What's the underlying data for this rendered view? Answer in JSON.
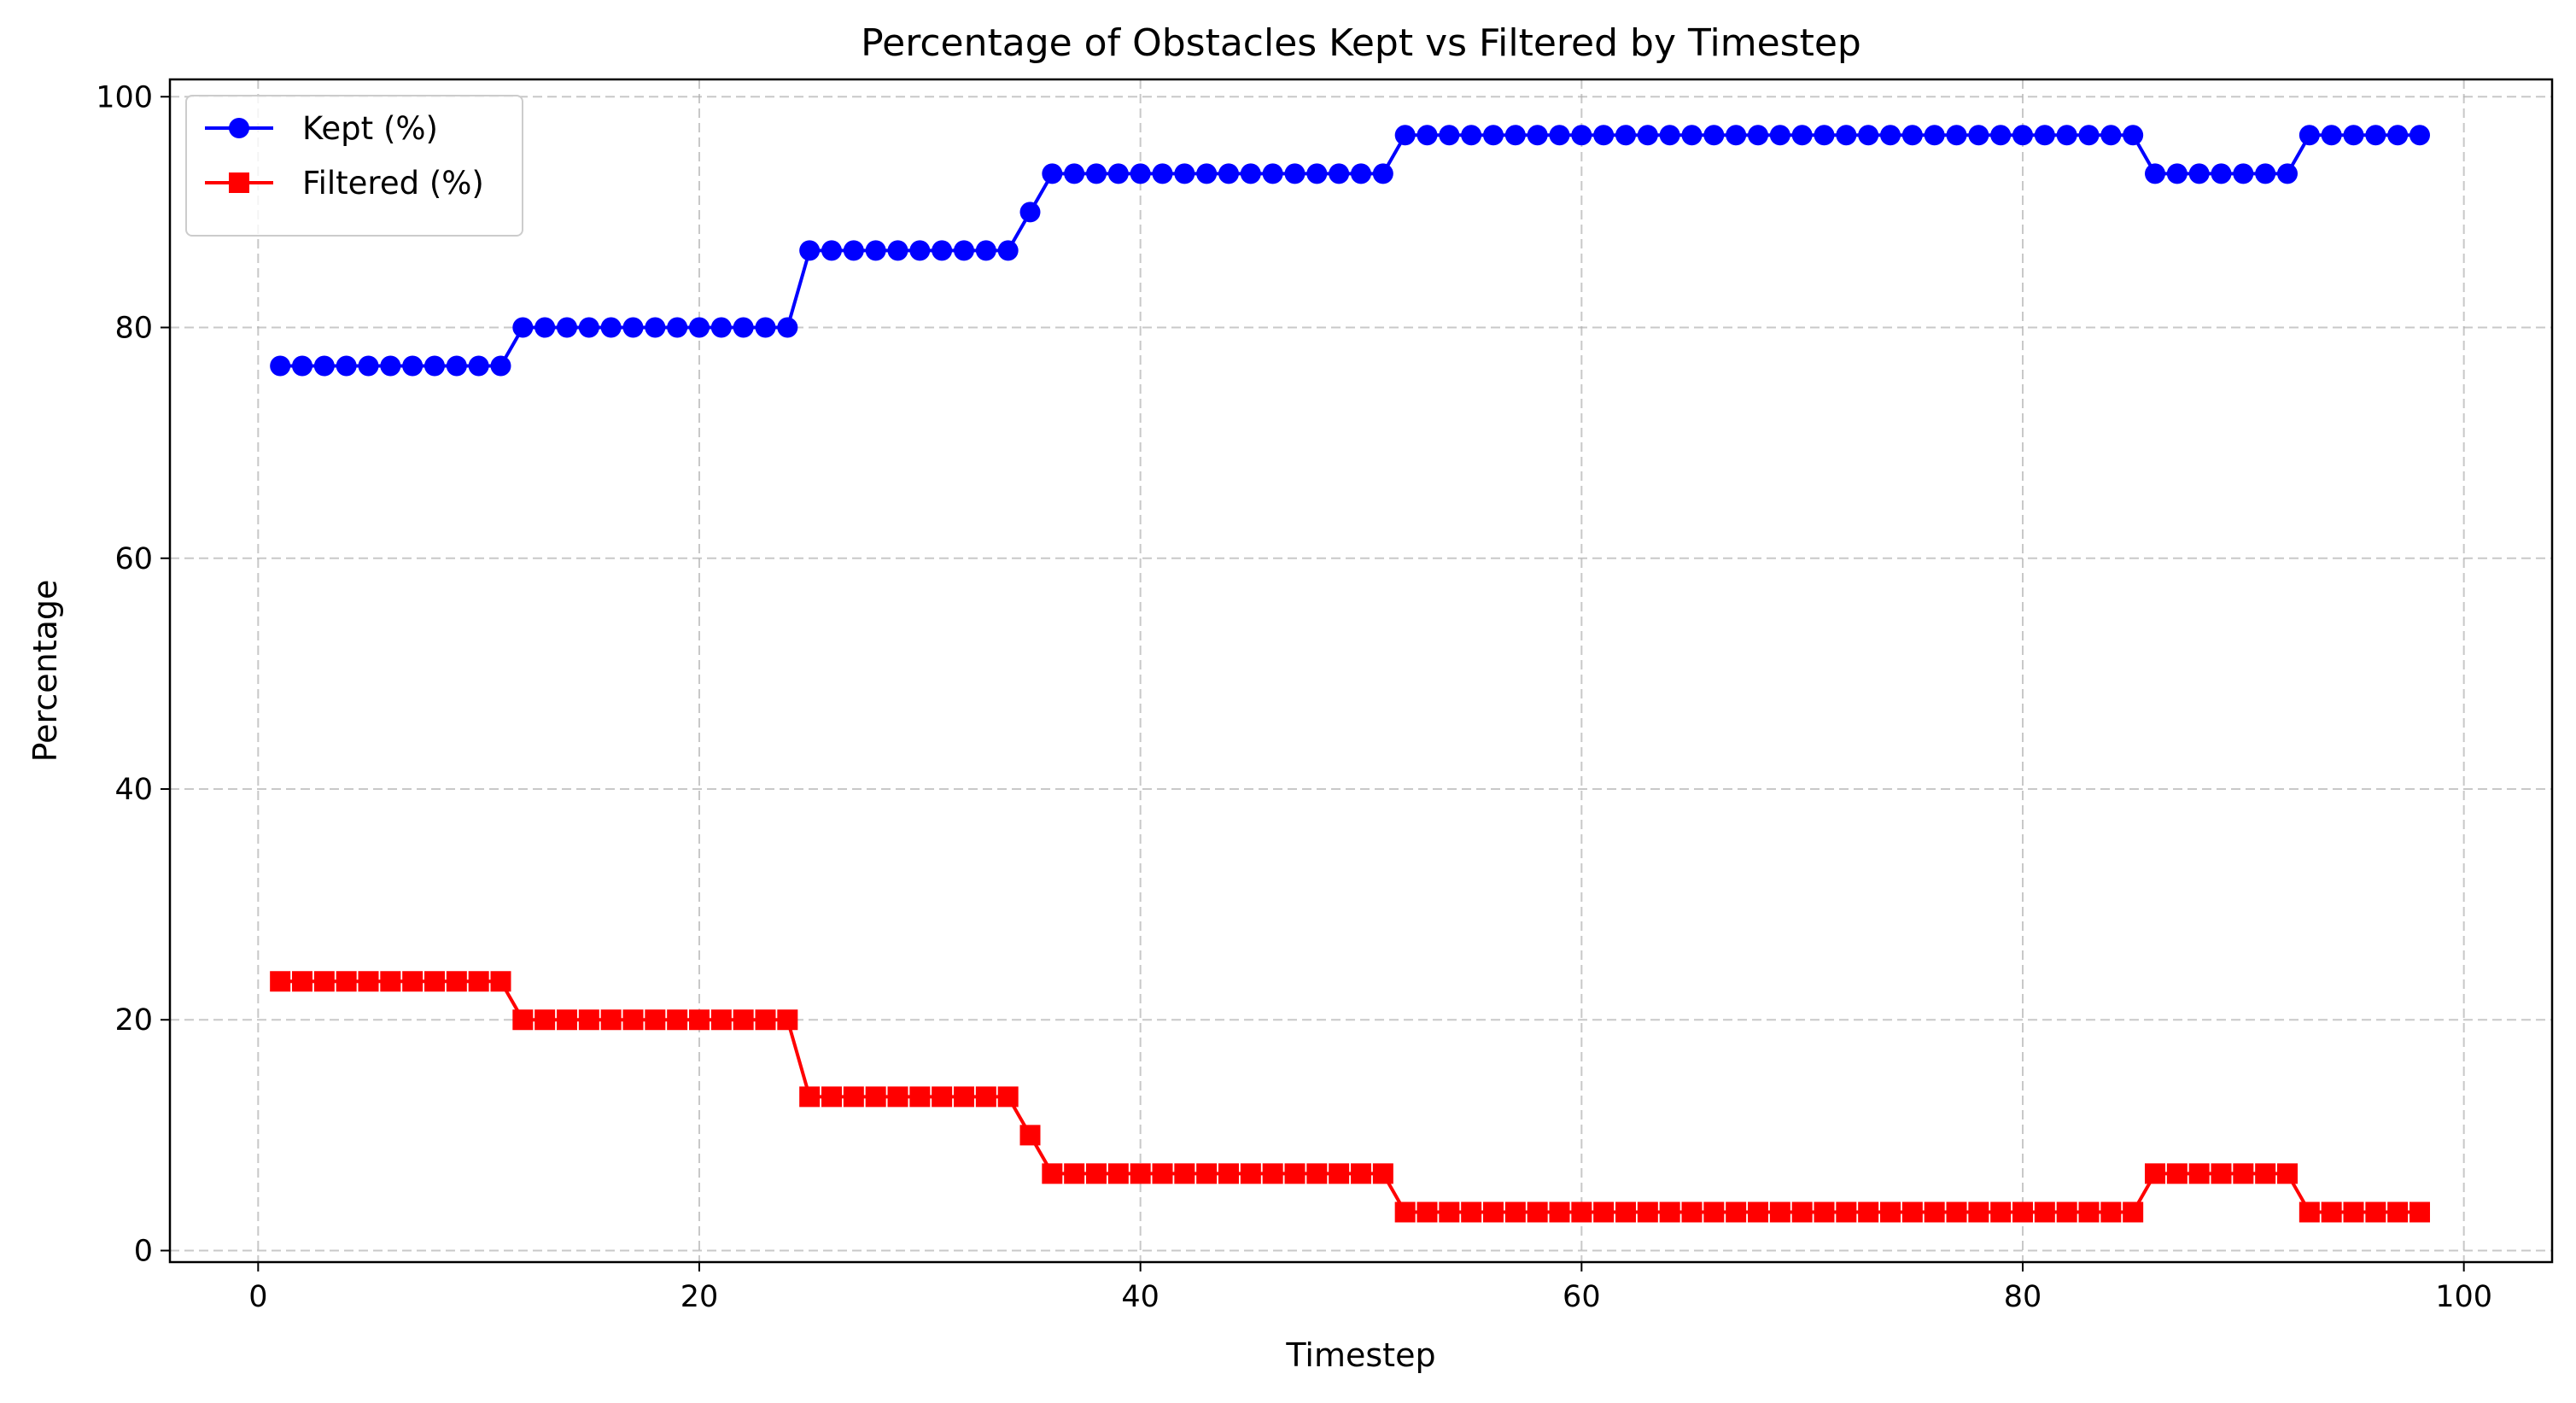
{
  "chart_data": {
    "type": "line",
    "title": "Percentage of Obstacles Kept vs Filtered by Timestep",
    "xlabel": "Timestep",
    "ylabel": "Percentage",
    "xlim": [
      -4,
      104
    ],
    "ylim": [
      -1,
      101.5
    ],
    "x_ticks": [
      0,
      20,
      40,
      60,
      80,
      100
    ],
    "y_ticks": [
      0,
      20,
      40,
      60,
      80,
      100
    ],
    "grid": true,
    "legend_position": "top-left",
    "x": [
      1,
      2,
      3,
      4,
      5,
      6,
      7,
      8,
      9,
      10,
      11,
      12,
      13,
      14,
      15,
      16,
      17,
      18,
      19,
      20,
      21,
      22,
      23,
      24,
      25,
      26,
      27,
      28,
      29,
      30,
      31,
      32,
      33,
      34,
      35,
      36,
      37,
      38,
      39,
      40,
      41,
      42,
      43,
      44,
      45,
      46,
      47,
      48,
      49,
      50,
      51,
      52,
      53,
      54,
      55,
      56,
      57,
      58,
      59,
      60,
      61,
      62,
      63,
      64,
      65,
      66,
      67,
      68,
      69,
      70,
      71,
      72,
      73,
      74,
      75,
      76,
      77,
      78,
      79,
      80,
      81,
      82,
      83,
      84,
      85,
      86,
      87,
      88,
      89,
      90,
      91,
      92,
      93,
      94,
      95,
      96,
      97,
      98
    ],
    "series": [
      {
        "name": "Kept (%)",
        "color": "#0000ff",
        "marker": "circle",
        "values": [
          76.67,
          76.67,
          76.67,
          76.67,
          76.67,
          76.67,
          76.67,
          76.67,
          76.67,
          76.67,
          76.67,
          80,
          80,
          80,
          80,
          80,
          80,
          80,
          80,
          80,
          80,
          80,
          80,
          80,
          86.67,
          86.67,
          86.67,
          86.67,
          86.67,
          86.67,
          86.67,
          86.67,
          86.67,
          86.67,
          90,
          93.33,
          93.33,
          93.33,
          93.33,
          93.33,
          93.33,
          93.33,
          93.33,
          93.33,
          93.33,
          93.33,
          93.33,
          93.33,
          93.33,
          93.33,
          93.33,
          96.67,
          96.67,
          96.67,
          96.67,
          96.67,
          96.67,
          96.67,
          96.67,
          96.67,
          96.67,
          96.67,
          96.67,
          96.67,
          96.67,
          96.67,
          96.67,
          96.67,
          96.67,
          96.67,
          96.67,
          96.67,
          96.67,
          96.67,
          96.67,
          96.67,
          96.67,
          96.67,
          96.67,
          96.67,
          96.67,
          96.67,
          96.67,
          96.67,
          96.67,
          93.33,
          93.33,
          93.33,
          93.33,
          93.33,
          93.33,
          93.33,
          96.67,
          96.67,
          96.67,
          96.67,
          96.67,
          96.67
        ]
      },
      {
        "name": "Filtered (%)",
        "color": "#ff0000",
        "marker": "square",
        "values": [
          23.33,
          23.33,
          23.33,
          23.33,
          23.33,
          23.33,
          23.33,
          23.33,
          23.33,
          23.33,
          23.33,
          20,
          20,
          20,
          20,
          20,
          20,
          20,
          20,
          20,
          20,
          20,
          20,
          20,
          13.33,
          13.33,
          13.33,
          13.33,
          13.33,
          13.33,
          13.33,
          13.33,
          13.33,
          13.33,
          10,
          6.67,
          6.67,
          6.67,
          6.67,
          6.67,
          6.67,
          6.67,
          6.67,
          6.67,
          6.67,
          6.67,
          6.67,
          6.67,
          6.67,
          6.67,
          6.67,
          3.33,
          3.33,
          3.33,
          3.33,
          3.33,
          3.33,
          3.33,
          3.33,
          3.33,
          3.33,
          3.33,
          3.33,
          3.33,
          3.33,
          3.33,
          3.33,
          3.33,
          3.33,
          3.33,
          3.33,
          3.33,
          3.33,
          3.33,
          3.33,
          3.33,
          3.33,
          3.33,
          3.33,
          3.33,
          3.33,
          3.33,
          3.33,
          3.33,
          3.33,
          6.67,
          6.67,
          6.67,
          6.67,
          6.67,
          6.67,
          6.67,
          3.33,
          3.33,
          3.33,
          3.33,
          3.33,
          3.33
        ]
      }
    ]
  }
}
